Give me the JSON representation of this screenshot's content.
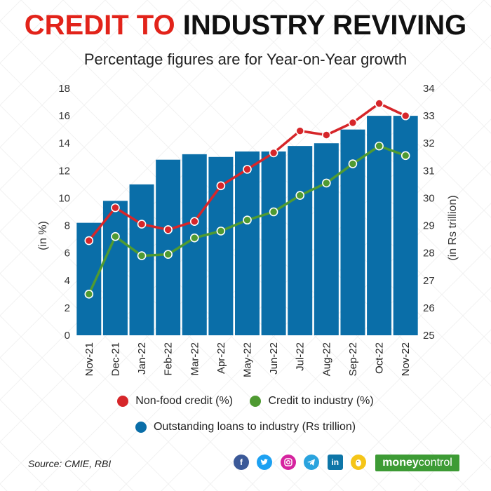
{
  "title_part1": "CREDIT TO",
  "title_part2": "INDUSTRY REVIVING",
  "subtitle": "Percentage figures are for Year-on-Year growth",
  "source": "Source: CMIE, RBI",
  "brand": {
    "part1": "money",
    "part2": "control"
  },
  "social_icons": [
    "facebook-icon",
    "twitter-icon",
    "instagram-icon",
    "telegram-icon",
    "linkedin-icon",
    "koo-icon"
  ],
  "colors": {
    "bar": "#0a6ea8",
    "nonfood": "#d6262a",
    "industry": "#4f9a32",
    "title_red": "#e2231a"
  },
  "chart_data": {
    "type": "bar",
    "title": "CREDIT TO INDUSTRY REVIVING",
    "categories": [
      "Nov-21",
      "Dec-21",
      "Jan-22",
      "Feb-22",
      "Mar-22",
      "Apr-22",
      "May-22",
      "Jun-22",
      "Jul-22",
      "Aug-22",
      "Sep-22",
      "Oct-22",
      "Nov-22"
    ],
    "ylabel_left": "(in %)",
    "ylabel_right": "(in Rs trillion)",
    "ylim_left": [
      0,
      18
    ],
    "ylim_right": [
      25,
      34
    ],
    "yticks_left": [
      0,
      2,
      4,
      6,
      8,
      10,
      12,
      14,
      16,
      18
    ],
    "yticks_right": [
      25,
      26,
      27,
      28,
      29,
      30,
      31,
      32,
      33,
      34
    ],
    "series": [
      {
        "name": "Outstanding loans to industry (Rs trillion)",
        "type": "bar",
        "axis": "right",
        "values": [
          29.1,
          29.9,
          30.5,
          31.4,
          31.6,
          31.5,
          31.7,
          31.7,
          31.9,
          32.0,
          32.5,
          33.0,
          33.0
        ]
      },
      {
        "name": "Non-food credit (%)",
        "type": "line",
        "axis": "left",
        "values": [
          6.9,
          9.3,
          8.1,
          7.7,
          8.3,
          10.9,
          12.1,
          13.3,
          14.9,
          14.6,
          15.5,
          16.9,
          16.0
        ]
      },
      {
        "name": "Credit to industry (%)",
        "type": "line",
        "axis": "left",
        "values": [
          3.0,
          7.2,
          5.8,
          5.9,
          7.1,
          7.6,
          8.4,
          9.0,
          10.2,
          11.1,
          12.5,
          13.8,
          13.1
        ]
      }
    ],
    "legend": [
      {
        "label": "Non-food credit (%)",
        "color": "#d6262a"
      },
      {
        "label": "Credit to industry (%)",
        "color": "#4f9a32"
      },
      {
        "label": "Outstanding loans to industry (Rs trillion)",
        "color": "#0a6ea8"
      }
    ]
  }
}
